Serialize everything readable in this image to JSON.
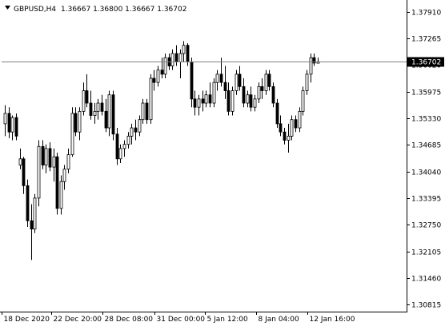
{
  "header": {
    "symbol": "GBPUSD,H4",
    "ohlc": "1.36667 1.36800 1.36667 1.36702",
    "collapse_icon": "triangle-down-icon"
  },
  "colors": {
    "background": "#ffffff",
    "axis": "#000000",
    "bull": "#000000",
    "bear": "#000000",
    "bull_fill": "#ffffff",
    "bear_fill": "#000000",
    "price_line": "#808080",
    "price_label_bg": "#000000",
    "price_label_text": "#ffffff"
  },
  "chart_data": {
    "type": "candlestick",
    "symbol": "GBPUSD",
    "timeframe": "H4",
    "ylim": [
      1.3065,
      1.381
    ],
    "y_ticks": [
      "1.37910",
      "1.37265",
      "1.36620",
      "1.35975",
      "1.35330",
      "1.34685",
      "1.34040",
      "1.33395",
      "1.32750",
      "1.32105",
      "1.31460",
      "1.30815"
    ],
    "x_ticks": [
      "18 Dec 2020",
      "22 Dec 20:00",
      "28 Dec 08:00",
      "31 Dec 00:00",
      "5 Jan 12:00",
      "8 Jan 04:00",
      "12 Jan 16:00"
    ],
    "current_price": "1.36702",
    "candles": [
      [
        1.352,
        1.3565,
        1.349,
        1.3545
      ],
      [
        1.3545,
        1.356,
        1.3485,
        1.35
      ],
      [
        1.35,
        1.354,
        1.348,
        1.3535
      ],
      [
        1.3535,
        1.3545,
        1.348,
        1.349
      ],
      [
        1.342,
        1.346,
        1.341,
        1.3435
      ],
      [
        1.3435,
        1.344,
        1.335,
        1.337
      ],
      [
        1.337,
        1.3385,
        1.327,
        1.3285
      ],
      [
        1.3285,
        1.3325,
        1.319,
        1.3265
      ],
      [
        1.3265,
        1.335,
        1.3255,
        1.334
      ],
      [
        1.334,
        1.348,
        1.332,
        1.3465
      ],
      [
        1.3465,
        1.348,
        1.341,
        1.342
      ],
      [
        1.342,
        1.347,
        1.34,
        1.346
      ],
      [
        1.346,
        1.3475,
        1.3405,
        1.3415
      ],
      [
        1.3415,
        1.346,
        1.338,
        1.344
      ],
      [
        1.344,
        1.345,
        1.33,
        1.3315
      ],
      [
        1.3315,
        1.3395,
        1.33,
        1.338
      ],
      [
        1.338,
        1.342,
        1.336,
        1.341
      ],
      [
        1.341,
        1.346,
        1.34,
        1.3445
      ],
      [
        1.3445,
        1.356,
        1.344,
        1.3545
      ],
      [
        1.3545,
        1.356,
        1.349,
        1.35
      ],
      [
        1.35,
        1.356,
        1.348,
        1.355
      ],
      [
        1.355,
        1.362,
        1.354,
        1.36
      ],
      [
        1.36,
        1.364,
        1.356,
        1.357
      ],
      [
        1.357,
        1.36,
        1.353,
        1.354
      ],
      [
        1.354,
        1.357,
        1.352,
        1.355
      ],
      [
        1.355,
        1.358,
        1.353,
        1.357
      ],
      [
        1.357,
        1.359,
        1.354,
        1.355
      ],
      [
        1.355,
        1.358,
        1.35,
        1.351
      ],
      [
        1.351,
        1.36,
        1.349,
        1.359
      ],
      [
        1.359,
        1.36,
        1.348,
        1.3495
      ],
      [
        1.3495,
        1.351,
        1.342,
        1.3435
      ],
      [
        1.3435,
        1.347,
        1.3425,
        1.346
      ],
      [
        1.346,
        1.348,
        1.344,
        1.347
      ],
      [
        1.347,
        1.35,
        1.346,
        1.349
      ],
      [
        1.349,
        1.352,
        1.347,
        1.351
      ],
      [
        1.351,
        1.353,
        1.348,
        1.35
      ],
      [
        1.35,
        1.354,
        1.349,
        1.353
      ],
      [
        1.353,
        1.358,
        1.352,
        1.357
      ],
      [
        1.357,
        1.358,
        1.352,
        1.353
      ],
      [
        1.353,
        1.364,
        1.352,
        1.363
      ],
      [
        1.363,
        1.365,
        1.36,
        1.362
      ],
      [
        1.362,
        1.366,
        1.361,
        1.365
      ],
      [
        1.365,
        1.368,
        1.363,
        1.364
      ],
      [
        1.364,
        1.369,
        1.363,
        1.368
      ],
      [
        1.368,
        1.369,
        1.365,
        1.366
      ],
      [
        1.366,
        1.37,
        1.365,
        1.369
      ],
      [
        1.369,
        1.371,
        1.366,
        1.367
      ],
      [
        1.367,
        1.37,
        1.363,
        1.369
      ],
      [
        1.369,
        1.372,
        1.367,
        1.371
      ],
      [
        1.371,
        1.3715,
        1.366,
        1.367
      ],
      [
        1.367,
        1.368,
        1.356,
        1.358
      ],
      [
        1.358,
        1.36,
        1.354,
        1.356
      ],
      [
        1.356,
        1.359,
        1.354,
        1.358
      ],
      [
        1.358,
        1.36,
        1.355,
        1.357
      ],
      [
        1.357,
        1.36,
        1.356,
        1.359
      ],
      [
        1.359,
        1.362,
        1.356,
        1.357
      ],
      [
        1.357,
        1.363,
        1.356,
        1.362
      ],
      [
        1.362,
        1.365,
        1.36,
        1.364
      ],
      [
        1.364,
        1.368,
        1.361,
        1.362
      ],
      [
        1.362,
        1.366,
        1.358,
        1.36
      ],
      [
        1.36,
        1.362,
        1.354,
        1.355
      ],
      [
        1.355,
        1.361,
        1.354,
        1.36
      ],
      [
        1.36,
        1.365,
        1.359,
        1.364
      ],
      [
        1.364,
        1.366,
        1.36,
        1.361
      ],
      [
        1.361,
        1.363,
        1.356,
        1.357
      ],
      [
        1.357,
        1.36,
        1.356,
        1.359
      ],
      [
        1.359,
        1.361,
        1.355,
        1.356
      ],
      [
        1.356,
        1.359,
        1.355,
        1.358
      ],
      [
        1.358,
        1.362,
        1.357,
        1.361
      ],
      [
        1.361,
        1.363,
        1.358,
        1.36
      ],
      [
        1.36,
        1.365,
        1.359,
        1.364
      ],
      [
        1.364,
        1.365,
        1.36,
        1.361
      ],
      [
        1.361,
        1.362,
        1.356,
        1.357
      ],
      [
        1.357,
        1.358,
        1.351,
        1.352
      ],
      [
        1.352,
        1.354,
        1.349,
        1.35
      ],
      [
        1.35,
        1.351,
        1.347,
        1.348
      ],
      [
        1.348,
        1.352,
        1.345,
        1.349
      ],
      [
        1.349,
        1.354,
        1.348,
        1.353
      ],
      [
        1.353,
        1.354,
        1.35,
        1.351
      ],
      [
        1.351,
        1.356,
        1.35,
        1.355
      ],
      [
        1.355,
        1.361,
        1.354,
        1.36
      ],
      [
        1.36,
        1.365,
        1.359,
        1.364
      ],
      [
        1.364,
        1.369,
        1.362,
        1.368
      ],
      [
        1.368,
        1.369,
        1.366,
        1.3667
      ],
      [
        1.36667,
        1.368,
        1.36667,
        1.36702
      ]
    ]
  }
}
